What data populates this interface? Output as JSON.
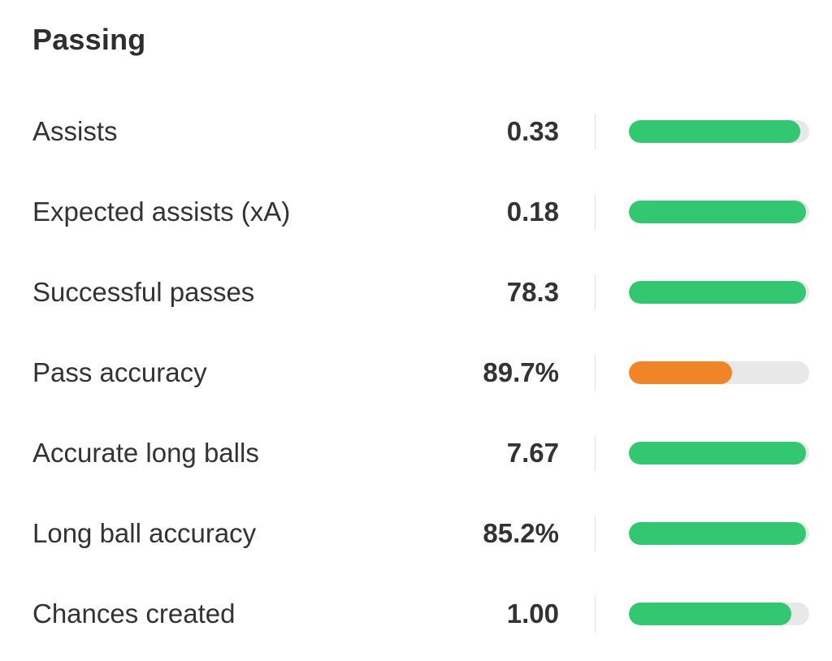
{
  "section": {
    "title": "Passing"
  },
  "colors": {
    "good": "#33c771",
    "average": "#f08426",
    "track": "#e8e8e8"
  },
  "stats": [
    {
      "label": "Assists",
      "value": "0.33",
      "percentile": 0.95,
      "status": "good"
    },
    {
      "label": "Expected assists (xA)",
      "value": "0.18",
      "percentile": 0.98,
      "status": "good"
    },
    {
      "label": "Successful passes",
      "value": "78.3",
      "percentile": 0.98,
      "status": "good"
    },
    {
      "label": "Pass accuracy",
      "value": "89.7%",
      "percentile": 0.57,
      "status": "average"
    },
    {
      "label": "Accurate long balls",
      "value": "7.67",
      "percentile": 0.98,
      "status": "good"
    },
    {
      "label": "Long ball accuracy",
      "value": "85.2%",
      "percentile": 0.98,
      "status": "good"
    },
    {
      "label": "Chances created",
      "value": "1.00",
      "percentile": 0.9,
      "status": "good"
    }
  ]
}
